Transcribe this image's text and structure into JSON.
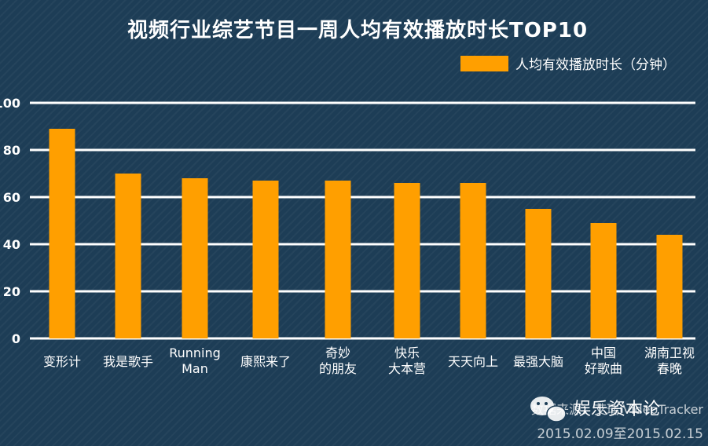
{
  "chart_data": {
    "type": "bar",
    "title": "视频行业综艺节目一周人均有效播放时长TOP10",
    "legend": {
      "label": "人均有效播放时长（分钟）",
      "placement": "top-right"
    },
    "categories": [
      [
        "变形计"
      ],
      [
        "我是歌手"
      ],
      [
        "Running",
        "Man"
      ],
      [
        "康熙来了"
      ],
      [
        "奇妙",
        "的朋友"
      ],
      [
        "快乐",
        "大本营"
      ],
      [
        "天天向上"
      ],
      [
        "最强大脑"
      ],
      [
        "中国",
        "好歌曲"
      ],
      [
        "湖南卫视",
        "春晚"
      ]
    ],
    "series": [
      {
        "name": "人均有效播放时长（分钟）",
        "values": [
          89,
          70,
          68,
          67,
          67,
          66,
          66,
          55,
          49,
          44
        ]
      }
    ],
    "ylim": [
      0,
      100
    ],
    "yticks": [
      "0",
      "20",
      "40",
      "60",
      "80",
      "100"
    ],
    "grid": true,
    "source": {
      "line1": "数据来源：艾瑞iVideoTracker",
      "line2": "2015.02.09至2015.02.15"
    },
    "watermark": "娱乐资本论",
    "colors": {
      "bar": "#ff9f00",
      "background": "#1d3d56",
      "grid": "#ffffff",
      "text": "#ffffff"
    }
  }
}
